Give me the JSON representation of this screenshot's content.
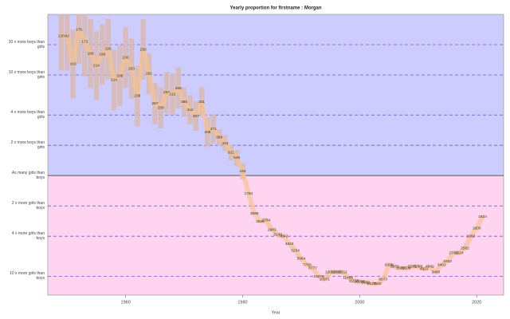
{
  "chart_data": {
    "type": "ratio-timeline",
    "title": "Yearly proportion for firstname : Morgan",
    "x_label": "Year",
    "x": [
      1949,
      1950,
      1951,
      1952,
      1953,
      1954,
      1955,
      1956,
      1957,
      1958,
      1959,
      1960,
      1961,
      1962,
      1963,
      1964,
      1965,
      1966,
      1967,
      1968,
      1969,
      1970,
      1971,
      1972,
      1973,
      1974,
      1975,
      1976,
      1977,
      1978,
      1979,
      1980,
      1981,
      1982,
      1983,
      1984,
      1985,
      1986,
      1987,
      1988,
      1989,
      1990,
      1991,
      1992,
      1993,
      1994,
      1995,
      1996,
      1997,
      1998,
      1999,
      2000,
      2001,
      2002,
      2003,
      2004,
      2005,
      2006,
      2007,
      2008,
      2009,
      2010,
      2011,
      2012,
      2013,
      2014,
      2015,
      2016,
      2017,
      2018,
      2019,
      2020,
      2021
    ],
    "values": [
      24.3,
      24.3,
      12.9,
      28.2,
      21.4,
      16.3,
      12.4,
      16.0,
      18.2,
      8.9,
      9.8,
      14.9,
      11.5,
      6.2,
      17.9,
      10.3,
      5.2,
      4.7,
      6.7,
      6.4,
      7.4,
      5.4,
      4.5,
      3.9,
      5.4,
      2.7,
      2.9,
      2.4,
      2.1,
      1.7,
      1.5,
      1.1,
      0.66,
      0.42,
      0.35,
      0.36,
      0.29,
      0.26,
      0.25,
      0.21,
      0.18,
      0.15,
      0.13,
      0.12,
      0.099,
      0.093,
      0.11,
      0.11,
      0.11,
      0.097,
      0.09,
      0.088,
      0.087,
      0.084,
      0.084,
      0.093,
      0.13,
      0.125,
      0.12,
      0.12,
      0.125,
      0.125,
      0.118,
      0.125,
      0.11,
      0.13,
      0.14,
      0.17,
      0.17,
      0.19,
      0.25,
      0.3,
      0.39
    ],
    "error_factor": [
      2.2,
      2.2,
      2.2,
      2.2,
      2.2,
      2.2,
      2.2,
      2,
      2,
      2,
      2,
      2,
      2,
      2,
      2,
      1.6,
      1.6,
      1.6,
      1.6,
      1.6,
      1.6,
      1.4,
      1.4,
      1.4,
      1.4,
      1.4,
      1.4,
      1.2,
      1.2,
      1.2,
      1.2,
      1.2,
      null,
      null,
      null,
      null,
      null,
      null,
      null,
      null,
      null,
      null,
      null,
      null,
      null,
      null,
      null,
      null,
      null,
      null,
      null,
      null,
      null,
      null,
      null,
      null,
      null,
      null,
      null,
      null,
      null,
      null,
      null,
      null,
      null,
      null,
      null,
      null,
      null,
      null,
      null,
      null,
      null
    ],
    "counts": [
      120,
      82,
      163,
      175,
      172,
      169,
      214,
      198,
      195,
      214,
      208,
      230,
      203,
      238,
      250,
      281,
      267,
      258,
      257,
      212,
      298,
      385,
      412,
      287,
      301,
      346,
      371,
      388,
      443,
      621,
      546,
      446,
      1784,
      2585,
      2526,
      2764,
      2983,
      3143,
      3842,
      4624,
      5254,
      5964,
      7790,
      8777,
      10276,
      10971,
      12058,
      11885,
      11511,
      11480,
      11150,
      10905,
      9990,
      8143,
      7562,
      6673,
      6308,
      5871,
      5380,
      5506,
      5281,
      5066,
      4921,
      4642,
      3460,
      3401,
      3263,
      2743,
      2624,
      2582,
      1962,
      1900,
      1824
    ],
    "xlim": [
      1946.7,
      2024.6
    ],
    "xticks": [
      1960,
      1980,
      2000,
      2020
    ],
    "ylim": [
      0.065,
      40
    ],
    "log_scale": true,
    "yticks": [
      {
        "value": 20,
        "label": "20 x more boys than girls"
      },
      {
        "value": 10,
        "label": "10 x more boys than girls"
      },
      {
        "value": 4,
        "label": "4 x more boys than girls"
      },
      {
        "value": 2,
        "label": "2 x more boys than girls"
      },
      {
        "value": 1,
        "label": "As many girls than boys"
      },
      {
        "value": 0.5,
        "label": "2 x more girls than boys"
      },
      {
        "value": 0.25,
        "label": "4 x more girls than boys"
      },
      {
        "value": 0.1,
        "label": "10 x more girls than boys"
      }
    ],
    "colors": {
      "boys": "#ccccff",
      "girls": "#ffd4f0",
      "box": "#d9b9b0",
      "trend": "#f6c28e"
    }
  }
}
